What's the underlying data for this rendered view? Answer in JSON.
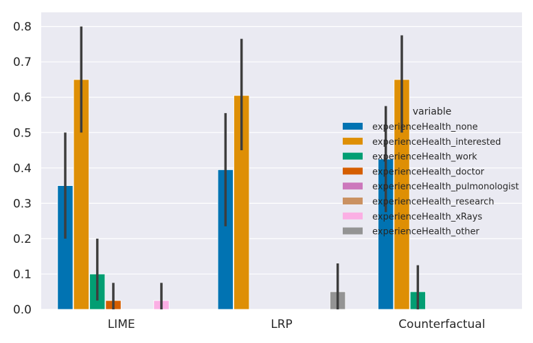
{
  "chart_data": {
    "type": "bar",
    "title": "",
    "xlabel": "",
    "ylabel": "",
    "ylim": [
      0,
      0.84
    ],
    "yticks": [
      "0.0",
      "0.1",
      "0.2",
      "0.3",
      "0.4",
      "0.5",
      "0.6",
      "0.7",
      "0.8"
    ],
    "grid": true,
    "categories": [
      "LIME",
      "LRP",
      "Counterfactual"
    ],
    "legend": {
      "title": "variable",
      "placement": "center-right"
    },
    "series": [
      {
        "name": "experienceHealth_none",
        "color": "#0173b2",
        "values": [
          0.35,
          0.395,
          0.425
        ],
        "err_low": [
          0.2,
          0.235,
          0.275
        ],
        "err_high": [
          0.5,
          0.555,
          0.575
        ]
      },
      {
        "name": "experienceHealth_interested",
        "color": "#de8f05",
        "values": [
          0.65,
          0.605,
          0.65
        ],
        "err_low": [
          0.5,
          0.45,
          0.5
        ],
        "err_high": [
          0.8,
          0.765,
          0.775
        ]
      },
      {
        "name": "experienceHealth_work",
        "color": "#029e73",
        "values": [
          0.1,
          0.0,
          0.05
        ],
        "err_low": [
          0.025,
          null,
          0.0
        ],
        "err_high": [
          0.2,
          null,
          0.125
        ]
      },
      {
        "name": "experienceHealth_doctor",
        "color": "#d55e00",
        "values": [
          0.025,
          0.0,
          0.0
        ],
        "err_low": [
          0.0,
          null,
          null
        ],
        "err_high": [
          0.075,
          null,
          null
        ]
      },
      {
        "name": "experienceHealth_pulmonologist",
        "color": "#cc78bc",
        "values": [
          0.0,
          0.0,
          0.0
        ],
        "err_low": [
          null,
          null,
          null
        ],
        "err_high": [
          null,
          null,
          null
        ]
      },
      {
        "name": "experienceHealth_research",
        "color": "#ca9161",
        "values": [
          0.0,
          0.0,
          0.0
        ],
        "err_low": [
          null,
          null,
          null
        ],
        "err_high": [
          null,
          null,
          null
        ]
      },
      {
        "name": "experienceHealth_xRays",
        "color": "#fbafe4",
        "values": [
          0.025,
          0.0,
          0.0
        ],
        "err_low": [
          0.0,
          null,
          null
        ],
        "err_high": [
          0.075,
          null,
          null
        ]
      },
      {
        "name": "experienceHealth_other",
        "color": "#949494",
        "values": [
          0.0,
          0.05,
          0.0
        ],
        "err_low": [
          null,
          0.0,
          null
        ],
        "err_high": [
          null,
          0.13,
          null
        ]
      }
    ],
    "style": {
      "plot_bg": "#eaeaf2",
      "grid_color": "#ffffff",
      "errorbar_color": "#3d3d3d"
    }
  }
}
